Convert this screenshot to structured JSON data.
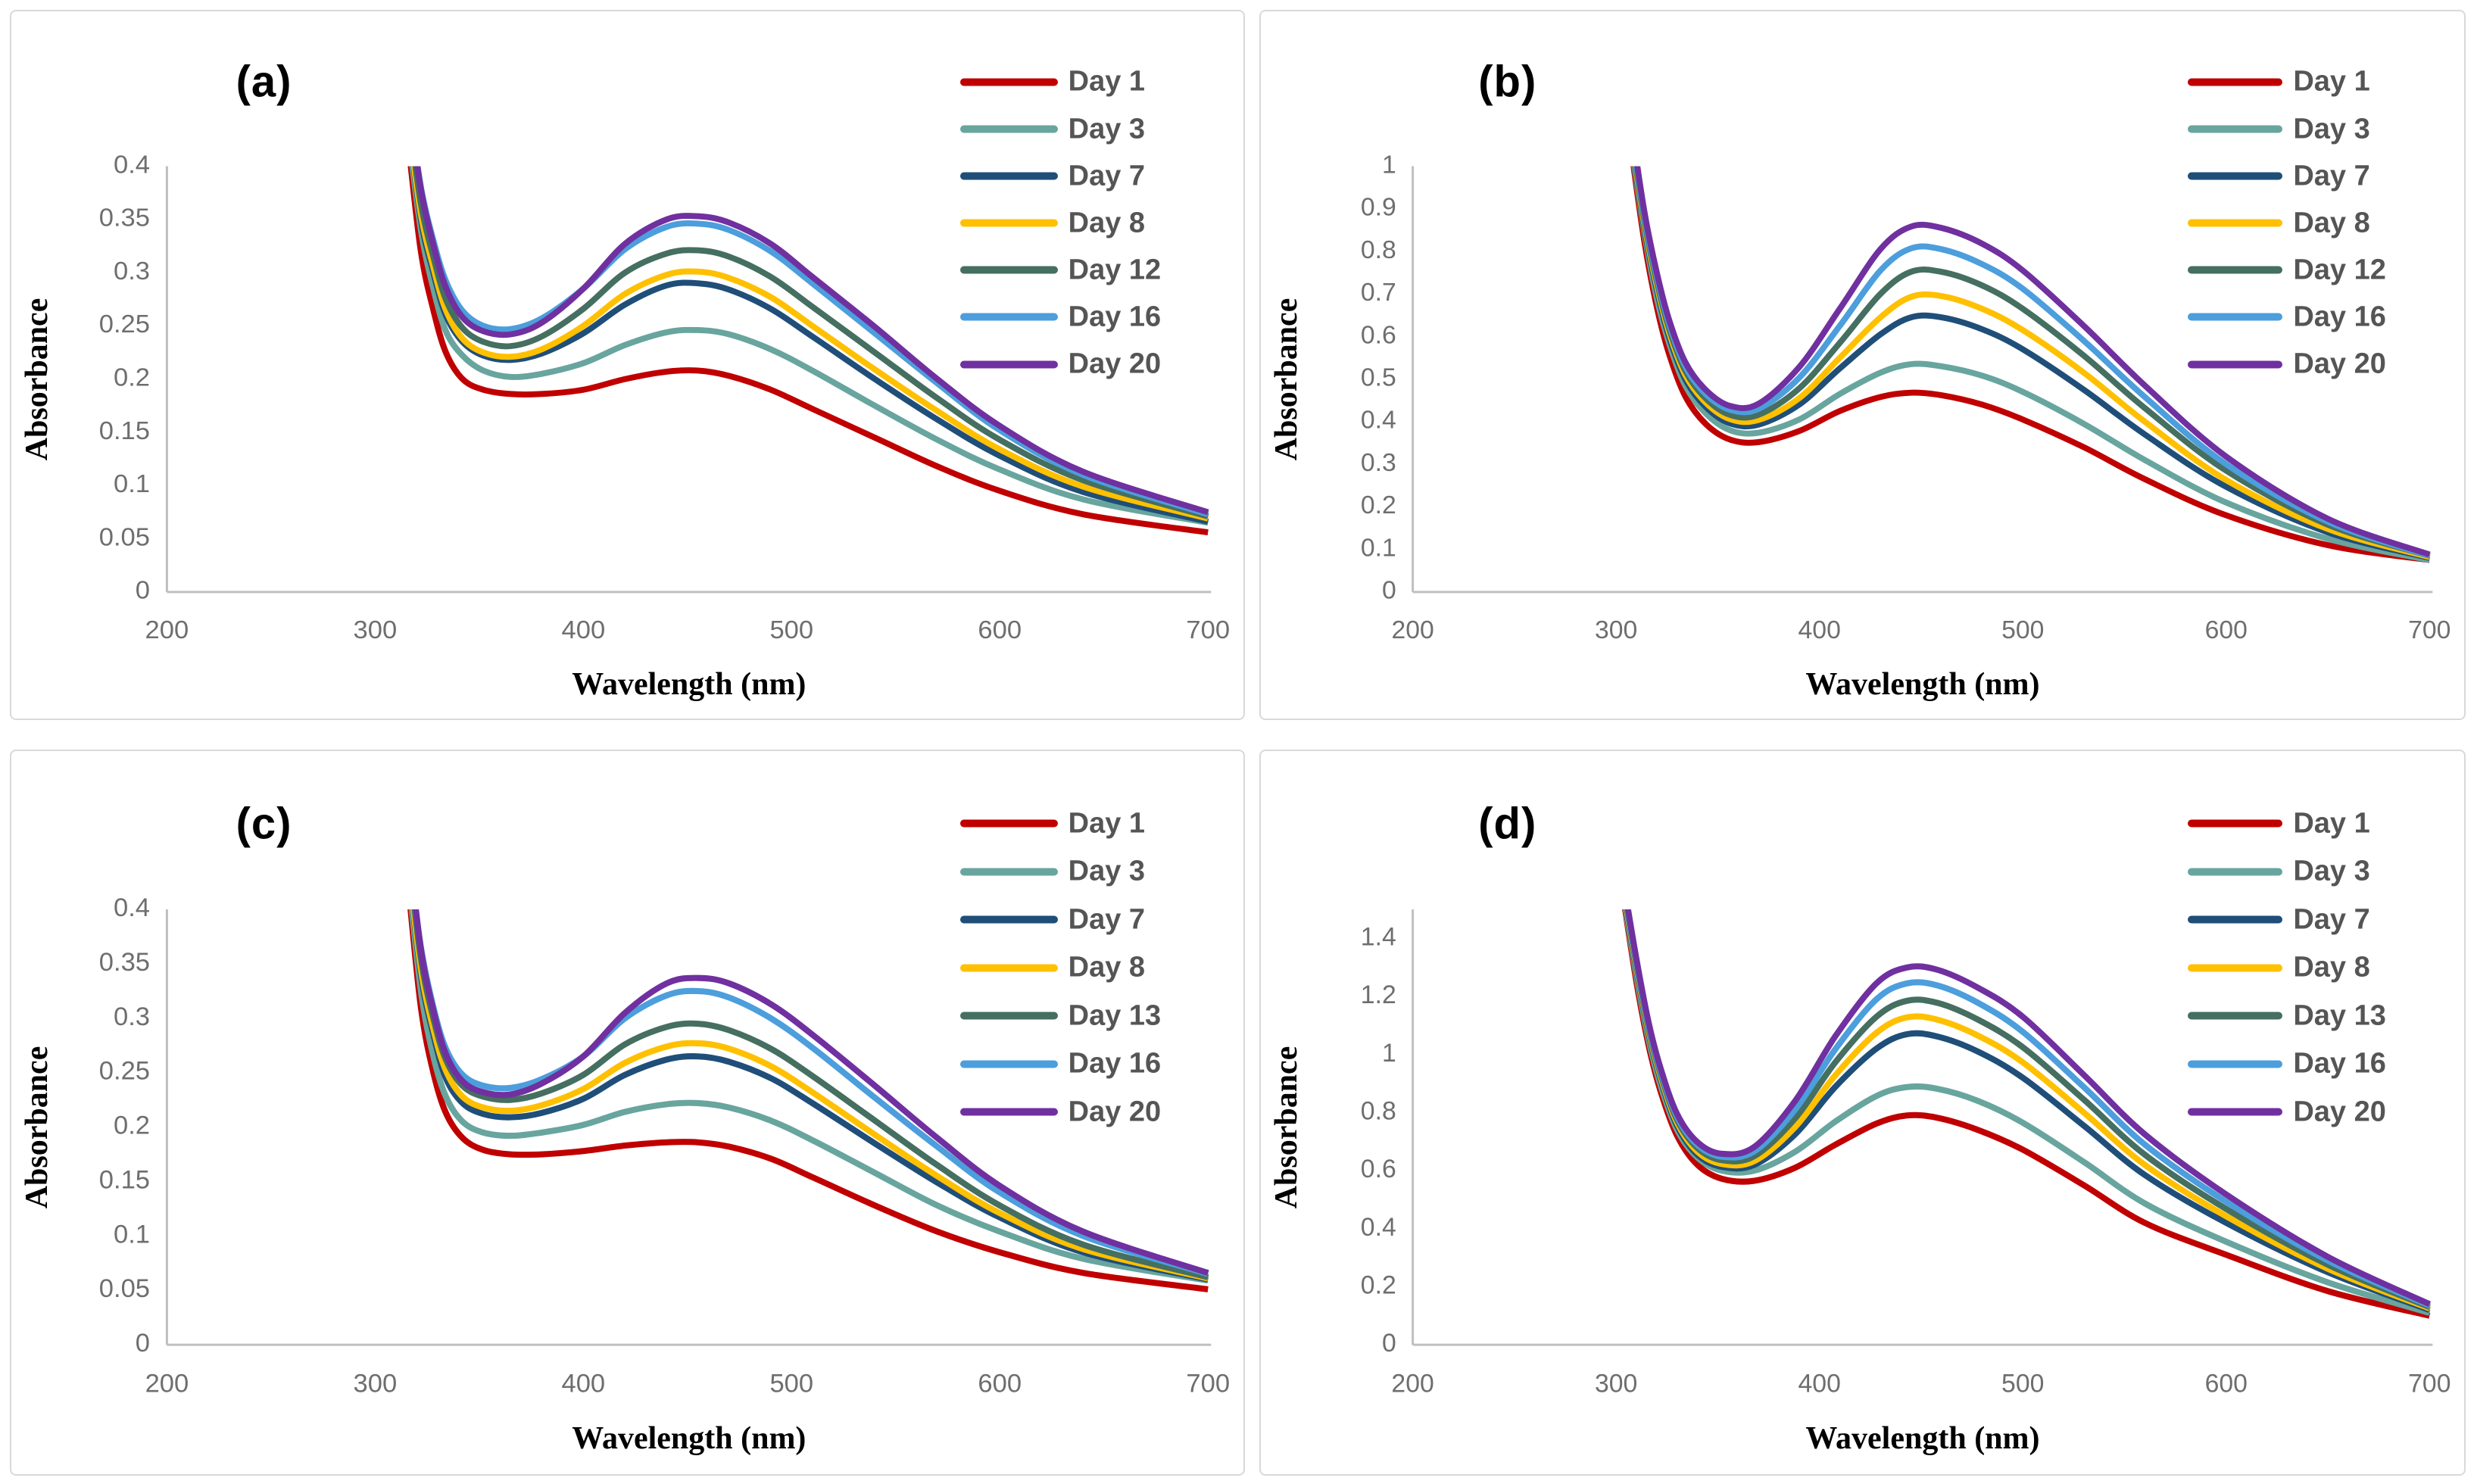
{
  "figure": {
    "background": "#FFFFFF",
    "panel_border_color": "#D9D9D9",
    "axis_line_color": "#BFBFBF",
    "tick_label_color": "#6E6E6E",
    "legend_text_color": "#555555",
    "panel_label_color": "#000000"
  },
  "palette": {
    "day1": "#C00000",
    "day3": "#68A59E",
    "day7": "#1F4E79",
    "day8": "#FFC000",
    "day12_13": "#456F60",
    "day16": "#4C9EDC",
    "day20": "#7030A0"
  },
  "chart_data": [
    {
      "type": "line",
      "panel_label": "(a)",
      "xlabel": "Wavelength (nm)",
      "ylabel": "Absorbance",
      "xlim": [
        200,
        700
      ],
      "ylim": [
        0,
        0.4
      ],
      "grid": false,
      "legend_position": "right-inside",
      "x_ticks": [
        "200",
        "300",
        "400",
        "500",
        "600",
        "700"
      ],
      "x_tick_values": [
        200,
        300,
        400,
        500,
        600,
        700
      ],
      "y_ticks": [
        "0",
        "0.05",
        "0.1",
        "0.15",
        "0.2",
        "0.25",
        "0.3",
        "0.35",
        "0.4"
      ],
      "y_tick_values": [
        0,
        0.05,
        0.1,
        0.15,
        0.2,
        0.25,
        0.3,
        0.35,
        0.4
      ],
      "x": [
        316,
        322,
        328,
        334,
        342,
        352,
        365,
        380,
        400,
        420,
        440,
        455,
        470,
        490,
        510,
        540,
        570,
        600,
        640,
        700
      ],
      "series": [
        {
          "name": "Day 1",
          "color": "#C00000",
          "values": [
            0.42,
            0.32,
            0.265,
            0.225,
            0.2,
            0.19,
            0.186,
            0.186,
            0.19,
            0.2,
            0.207,
            0.208,
            0.203,
            0.19,
            0.172,
            0.145,
            0.118,
            0.095,
            0.073,
            0.056
          ]
        },
        {
          "name": "Day 3",
          "color": "#68A59E",
          "values": [
            0.43,
            0.34,
            0.285,
            0.245,
            0.222,
            0.208,
            0.202,
            0.205,
            0.215,
            0.232,
            0.244,
            0.246,
            0.242,
            0.228,
            0.208,
            0.175,
            0.143,
            0.115,
            0.087,
            0.065
          ]
        },
        {
          "name": "Day 7",
          "color": "#1F4E79",
          "values": [
            0.44,
            0.35,
            0.3,
            0.26,
            0.235,
            0.222,
            0.218,
            0.224,
            0.243,
            0.27,
            0.288,
            0.29,
            0.284,
            0.266,
            0.24,
            0.2,
            0.162,
            0.128,
            0.094,
            0.066
          ]
        },
        {
          "name": "Day 8",
          "color": "#FFC000",
          "values": [
            0.44,
            0.355,
            0.305,
            0.265,
            0.238,
            0.225,
            0.221,
            0.228,
            0.25,
            0.28,
            0.298,
            0.301,
            0.295,
            0.277,
            0.25,
            0.209,
            0.17,
            0.134,
            0.099,
            0.069
          ]
        },
        {
          "name": "Day 12",
          "color": "#456F60",
          "values": [
            0.45,
            0.365,
            0.315,
            0.275,
            0.248,
            0.235,
            0.231,
            0.24,
            0.266,
            0.3,
            0.318,
            0.321,
            0.315,
            0.296,
            0.268,
            0.225,
            0.182,
            0.143,
            0.105,
            0.071
          ]
        },
        {
          "name": "Day 16",
          "color": "#4C9EDC",
          "values": [
            0.46,
            0.38,
            0.33,
            0.292,
            0.264,
            0.25,
            0.247,
            0.257,
            0.285,
            0.322,
            0.343,
            0.346,
            0.34,
            0.32,
            0.29,
            0.243,
            0.196,
            0.152,
            0.11,
            0.073
          ]
        },
        {
          "name": "Day 20",
          "color": "#7030A0",
          "values": [
            0.46,
            0.378,
            0.326,
            0.286,
            0.258,
            0.245,
            0.242,
            0.253,
            0.285,
            0.327,
            0.35,
            0.353,
            0.347,
            0.327,
            0.296,
            0.249,
            0.2,
            0.156,
            0.113,
            0.075
          ]
        }
      ]
    },
    {
      "type": "line",
      "panel_label": "(b)",
      "xlabel": "Wavelength (nm)",
      "ylabel": "Absorbance",
      "xlim": [
        200,
        700
      ],
      "ylim": [
        0,
        1.0
      ],
      "grid": false,
      "legend_position": "right-inside",
      "x_ticks": [
        "200",
        "300",
        "400",
        "500",
        "600",
        "700"
      ],
      "x_tick_values": [
        200,
        300,
        400,
        500,
        600,
        700
      ],
      "y_ticks": [
        "0",
        "0.1",
        "0.2",
        "0.3",
        "0.4",
        "0.5",
        "0.6",
        "0.7",
        "0.8",
        "0.9",
        "1"
      ],
      "y_tick_values": [
        0,
        0.1,
        0.2,
        0.3,
        0.4,
        0.5,
        0.6,
        0.7,
        0.8,
        0.9,
        1.0
      ],
      "x": [
        308,
        314,
        320,
        326,
        334,
        344,
        356,
        370,
        390,
        410,
        430,
        445,
        460,
        480,
        500,
        530,
        560,
        600,
        650,
        700
      ],
      "series": [
        {
          "name": "Day 1",
          "color": "#C00000",
          "values": [
            1.02,
            0.82,
            0.67,
            0.56,
            0.46,
            0.395,
            0.358,
            0.352,
            0.378,
            0.425,
            0.458,
            0.468,
            0.462,
            0.44,
            0.405,
            0.34,
            0.265,
            0.18,
            0.11,
            0.075
          ]
        },
        {
          "name": "Day 3",
          "color": "#68A59E",
          "values": [
            1.03,
            0.84,
            0.69,
            0.585,
            0.485,
            0.42,
            0.38,
            0.374,
            0.405,
            0.465,
            0.515,
            0.535,
            0.53,
            0.508,
            0.47,
            0.395,
            0.31,
            0.21,
            0.125,
            0.075
          ]
        },
        {
          "name": "Day 7",
          "color": "#1F4E79",
          "values": [
            1.04,
            0.85,
            0.71,
            0.6,
            0.5,
            0.435,
            0.396,
            0.393,
            0.44,
            0.525,
            0.605,
            0.645,
            0.645,
            0.617,
            0.57,
            0.475,
            0.37,
            0.247,
            0.14,
            0.08
          ]
        },
        {
          "name": "Day 8",
          "color": "#FFC000",
          "values": [
            1.05,
            0.86,
            0.72,
            0.61,
            0.51,
            0.445,
            0.406,
            0.404,
            0.455,
            0.55,
            0.645,
            0.693,
            0.695,
            0.665,
            0.615,
            0.515,
            0.4,
            0.263,
            0.148,
            0.082
          ]
        },
        {
          "name": "Day 12",
          "color": "#456F60",
          "values": [
            1.06,
            0.87,
            0.73,
            0.62,
            0.52,
            0.455,
            0.416,
            0.416,
            0.478,
            0.585,
            0.7,
            0.752,
            0.752,
            0.72,
            0.665,
            0.555,
            0.432,
            0.285,
            0.158,
            0.085
          ]
        },
        {
          "name": "Day 16",
          "color": "#4C9EDC",
          "values": [
            1.07,
            0.88,
            0.74,
            0.63,
            0.53,
            0.465,
            0.428,
            0.43,
            0.503,
            0.625,
            0.755,
            0.807,
            0.805,
            0.77,
            0.712,
            0.59,
            0.458,
            0.3,
            0.165,
            0.085
          ]
        },
        {
          "name": "Day 20",
          "color": "#7030A0",
          "values": [
            1.08,
            0.89,
            0.75,
            0.64,
            0.54,
            0.475,
            0.437,
            0.442,
            0.528,
            0.665,
            0.805,
            0.858,
            0.855,
            0.818,
            0.755,
            0.625,
            0.485,
            0.318,
            0.172,
            0.088
          ]
        }
      ]
    },
    {
      "type": "line",
      "panel_label": "(c)",
      "xlabel": "Wavelength (nm)",
      "ylabel": "Absorbance",
      "xlim": [
        200,
        700
      ],
      "ylim": [
        0,
        0.4
      ],
      "grid": false,
      "legend_position": "right-inside",
      "x_ticks": [
        "200",
        "300",
        "400",
        "500",
        "600",
        "700"
      ],
      "x_tick_values": [
        200,
        300,
        400,
        500,
        600,
        700
      ],
      "y_ticks": [
        "0",
        "0.05",
        "0.1",
        "0.15",
        "0.2",
        "0.25",
        "0.3",
        "0.35",
        "0.4"
      ],
      "y_tick_values": [
        0,
        0.05,
        0.1,
        0.15,
        0.2,
        0.25,
        0.3,
        0.35,
        0.4
      ],
      "x": [
        316,
        322,
        328,
        334,
        342,
        352,
        365,
        380,
        400,
        420,
        440,
        455,
        470,
        490,
        510,
        540,
        570,
        600,
        640,
        700
      ],
      "series": [
        {
          "name": "Day 1",
          "color": "#C00000",
          "values": [
            0.42,
            0.31,
            0.25,
            0.213,
            0.19,
            0.179,
            0.175,
            0.175,
            0.178,
            0.183,
            0.186,
            0.186,
            0.182,
            0.171,
            0.154,
            0.128,
            0.104,
            0.085,
            0.066,
            0.051
          ]
        },
        {
          "name": "Day 3",
          "color": "#68A59E",
          "values": [
            0.43,
            0.325,
            0.265,
            0.228,
            0.205,
            0.195,
            0.192,
            0.195,
            0.202,
            0.214,
            0.221,
            0.222,
            0.218,
            0.206,
            0.188,
            0.158,
            0.128,
            0.104,
            0.079,
            0.059
          ]
        },
        {
          "name": "Day 7",
          "color": "#1F4E79",
          "values": [
            0.44,
            0.34,
            0.285,
            0.245,
            0.222,
            0.212,
            0.209,
            0.213,
            0.226,
            0.248,
            0.262,
            0.265,
            0.26,
            0.245,
            0.222,
            0.185,
            0.149,
            0.117,
            0.085,
            0.06
          ]
        },
        {
          "name": "Day 8",
          "color": "#FFC000",
          "values": [
            0.44,
            0.345,
            0.29,
            0.252,
            0.228,
            0.218,
            0.215,
            0.22,
            0.235,
            0.259,
            0.274,
            0.277,
            0.272,
            0.256,
            0.232,
            0.193,
            0.155,
            0.121,
            0.088,
            0.061
          ]
        },
        {
          "name": "Day 13",
          "color": "#456F60",
          "values": [
            0.45,
            0.355,
            0.3,
            0.262,
            0.238,
            0.228,
            0.225,
            0.231,
            0.248,
            0.276,
            0.292,
            0.295,
            0.289,
            0.272,
            0.247,
            0.206,
            0.165,
            0.128,
            0.092,
            0.062
          ]
        },
        {
          "name": "Day 16",
          "color": "#4C9EDC",
          "values": [
            0.45,
            0.365,
            0.31,
            0.272,
            0.248,
            0.238,
            0.236,
            0.244,
            0.265,
            0.3,
            0.321,
            0.325,
            0.319,
            0.3,
            0.273,
            0.227,
            0.182,
            0.14,
            0.1,
            0.065
          ]
        },
        {
          "name": "Day 20",
          "color": "#7030A0",
          "values": [
            0.46,
            0.363,
            0.307,
            0.267,
            0.242,
            0.232,
            0.23,
            0.24,
            0.265,
            0.305,
            0.332,
            0.337,
            0.332,
            0.313,
            0.285,
            0.238,
            0.19,
            0.146,
            0.104,
            0.066
          ]
        }
      ]
    },
    {
      "type": "line",
      "panel_label": "(d)",
      "xlabel": "Wavelength (nm)",
      "ylabel": "Absorbance",
      "xlim": [
        200,
        700
      ],
      "ylim": [
        0,
        1.5
      ],
      "grid": false,
      "legend_position": "right-inside",
      "x_ticks": [
        "200",
        "300",
        "400",
        "500",
        "600",
        "700"
      ],
      "x_tick_values": [
        200,
        300,
        400,
        500,
        600,
        700
      ],
      "y_ticks": [
        "0",
        "0.2",
        "0.4",
        "0.6",
        "0.8",
        "1",
        "1.2",
        "1.4"
      ],
      "y_tick_values": [
        0,
        0.2,
        0.4,
        0.6,
        0.8,
        1.0,
        1.2,
        1.4
      ],
      "x": [
        304,
        310,
        316,
        322,
        330,
        340,
        352,
        368,
        388,
        408,
        428,
        443,
        458,
        478,
        500,
        530,
        560,
        600,
        650,
        700
      ],
      "series": [
        {
          "name": "Day 1",
          "color": "#C00000",
          "values": [
            1.52,
            1.25,
            1.03,
            0.87,
            0.72,
            0.62,
            0.572,
            0.565,
            0.61,
            0.69,
            0.762,
            0.79,
            0.782,
            0.74,
            0.672,
            0.55,
            0.42,
            0.31,
            0.185,
            0.1
          ]
        },
        {
          "name": "Day 3",
          "color": "#68A59E",
          "values": [
            1.53,
            1.27,
            1.05,
            0.89,
            0.74,
            0.645,
            0.6,
            0.6,
            0.665,
            0.77,
            0.857,
            0.888,
            0.882,
            0.84,
            0.765,
            0.63,
            0.487,
            0.355,
            0.215,
            0.11
          ]
        },
        {
          "name": "Day 7",
          "color": "#1F4E79",
          "values": [
            1.54,
            1.29,
            1.07,
            0.91,
            0.755,
            0.655,
            0.613,
            0.62,
            0.725,
            0.89,
            1.02,
            1.07,
            1.062,
            1.01,
            0.92,
            0.755,
            0.585,
            0.42,
            0.25,
            0.12
          ]
        },
        {
          "name": "Day 8",
          "color": "#FFC000",
          "values": [
            1.55,
            1.3,
            1.08,
            0.92,
            0.765,
            0.665,
            0.623,
            0.633,
            0.75,
            0.93,
            1.075,
            1.128,
            1.12,
            1.065,
            0.973,
            0.8,
            0.62,
            0.443,
            0.262,
            0.125
          ]
        },
        {
          "name": "Day 13",
          "color": "#456F60",
          "values": [
            1.56,
            1.31,
            1.09,
            0.93,
            0.775,
            0.678,
            0.636,
            0.65,
            0.78,
            0.975,
            1.13,
            1.185,
            1.178,
            1.12,
            1.025,
            0.845,
            0.655,
            0.468,
            0.276,
            0.13
          ]
        },
        {
          "name": "Day 16",
          "color": "#4C9EDC",
          "values": [
            1.57,
            1.32,
            1.1,
            0.94,
            0.785,
            0.688,
            0.648,
            0.667,
            0.81,
            1.02,
            1.19,
            1.245,
            1.238,
            1.178,
            1.078,
            0.888,
            0.69,
            0.493,
            0.29,
            0.135
          ]
        },
        {
          "name": "Day 20",
          "color": "#7030A0",
          "values": [
            1.58,
            1.33,
            1.11,
            0.95,
            0.795,
            0.698,
            0.658,
            0.682,
            0.84,
            1.065,
            1.245,
            1.3,
            1.292,
            1.23,
            1.13,
            0.93,
            0.725,
            0.518,
            0.303,
            0.14
          ]
        }
      ]
    }
  ]
}
